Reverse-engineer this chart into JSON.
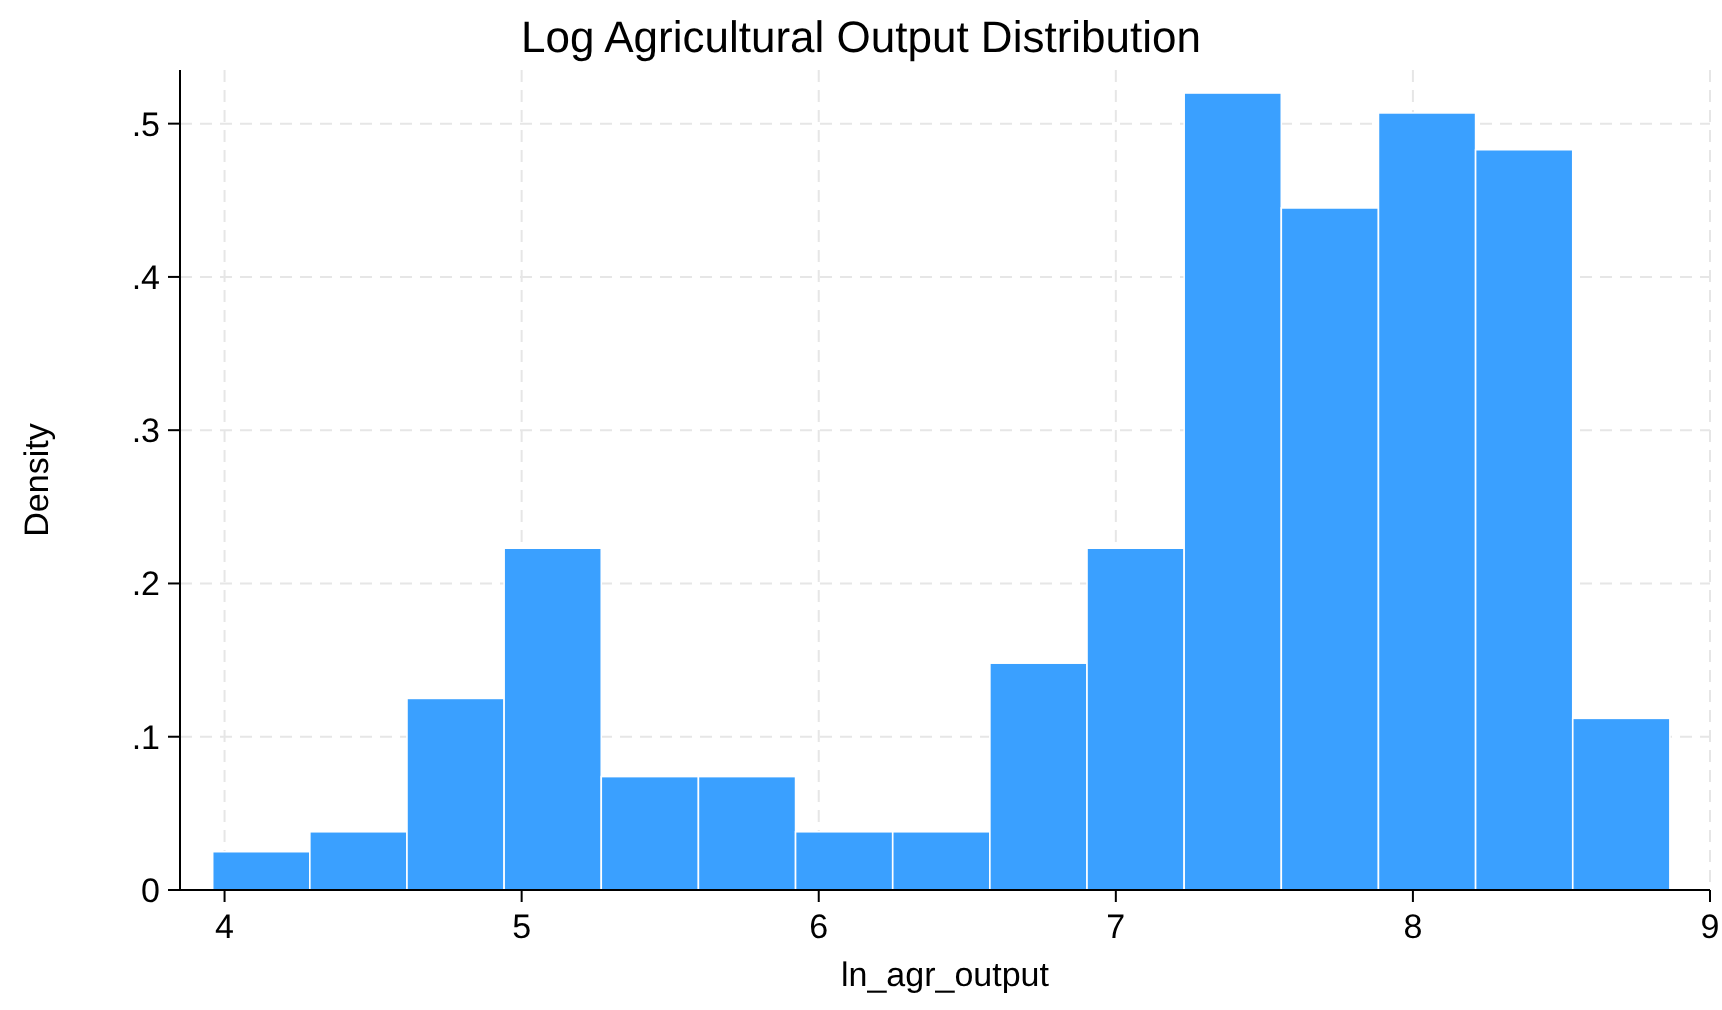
{
  "chart_data": {
    "type": "histogram",
    "title": "Log Agricultural Output Distribution",
    "xlabel": "ln_agr_output",
    "ylabel": "Density",
    "bins": [
      3.96,
      4.287,
      4.614,
      4.941,
      5.268,
      5.595,
      5.922,
      6.249,
      6.576,
      6.903,
      7.23,
      7.557,
      7.884,
      8.211,
      8.538,
      8.865
    ],
    "values": [
      0.025,
      0.038,
      0.125,
      0.223,
      0.074,
      0.074,
      0.038,
      0.038,
      0.148,
      0.223,
      0.52,
      0.445,
      0.507,
      0.483,
      0.112
    ],
    "color": "#3aa0ff",
    "xlim": [
      3.85,
      9
    ],
    "xticks": [
      4,
      5,
      6,
      7,
      8,
      9
    ],
    "ylim": [
      0,
      0.535
    ],
    "yticks": [
      0,
      {
        "value": 0.1,
        "label": ".1"
      },
      {
        "value": 0.2,
        "label": ".2"
      },
      {
        "value": 0.3,
        "label": ".3"
      },
      {
        "value": 0.4,
        "label": ".4"
      },
      {
        "value": 0.5,
        "label": ".5"
      }
    ],
    "grid": true
  }
}
